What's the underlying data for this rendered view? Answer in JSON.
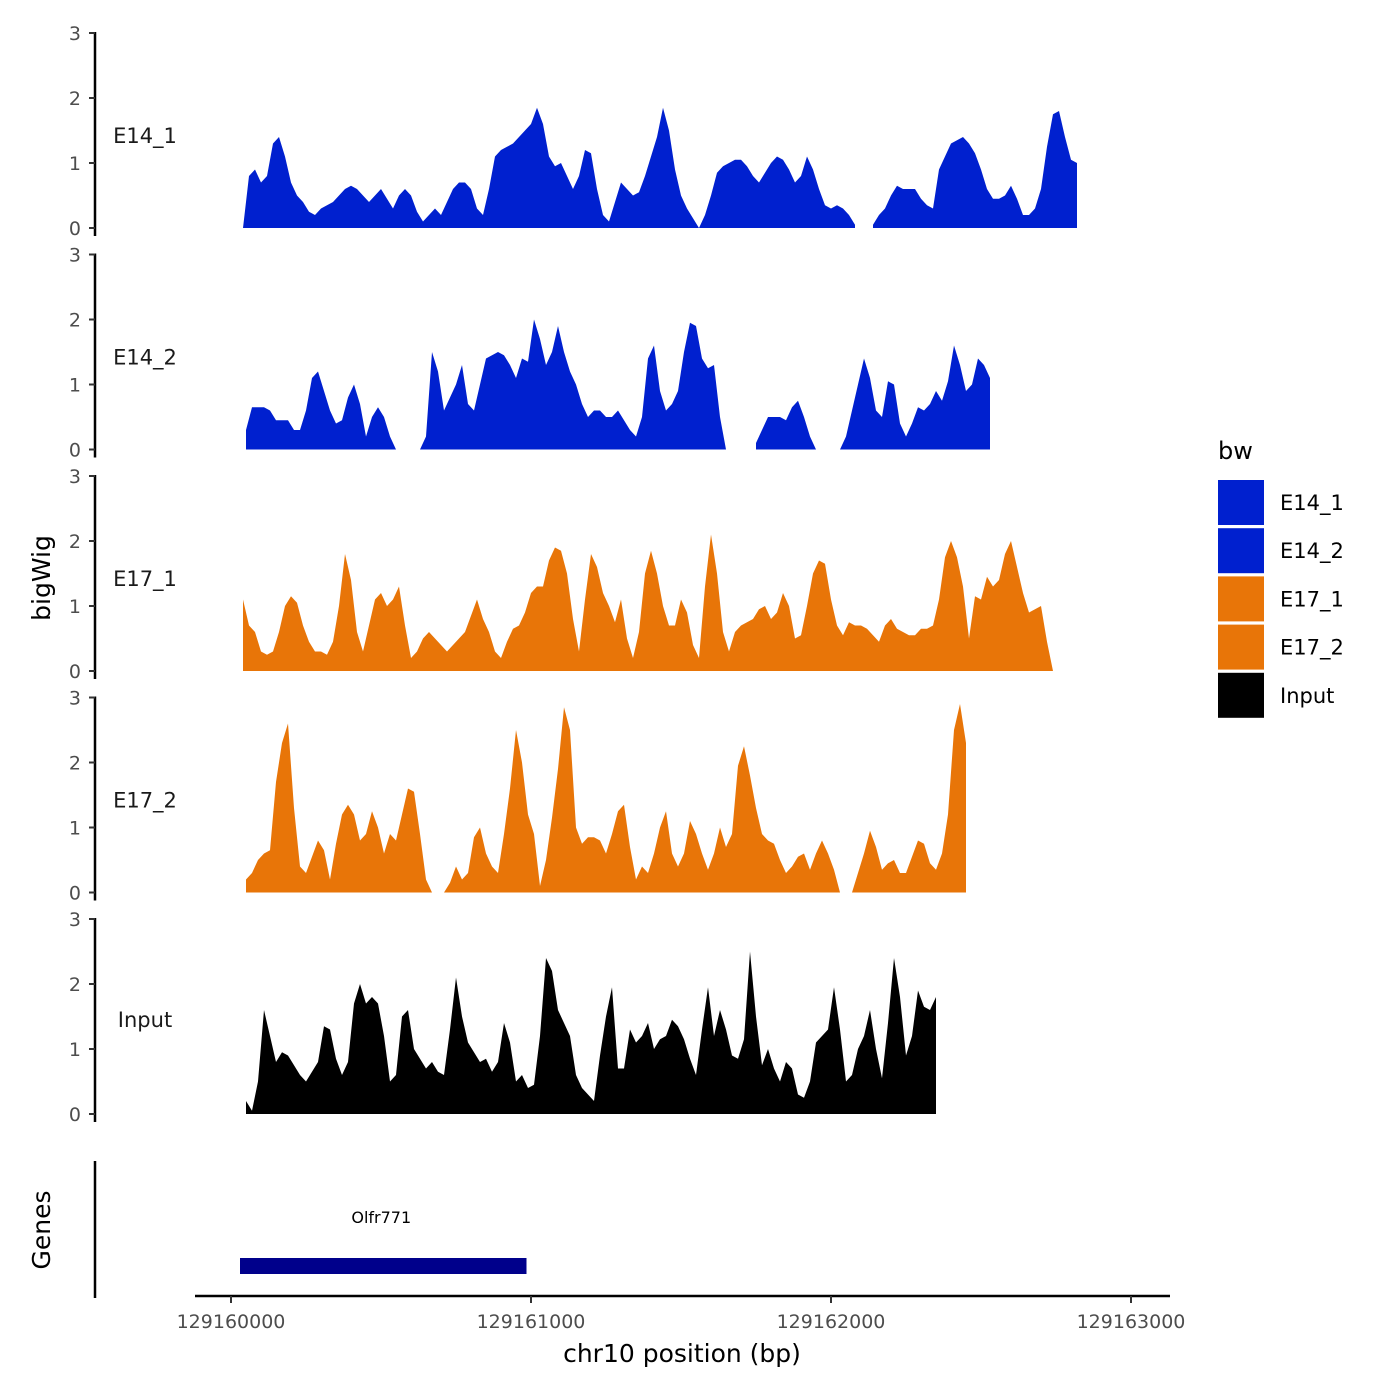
{
  "chart_data": {
    "type": "area",
    "ylabel": "bigWig",
    "genes_label": "Genes",
    "xlabel": "chr10 position (bp)",
    "x_range": [
      129159880,
      129163130
    ],
    "x_ticks": [
      129160000,
      129161000,
      129162000,
      129163000
    ],
    "x_tick_labels": [
      "129160000",
      "129161000",
      "129162000",
      "129163000"
    ],
    "ylim": [
      0,
      3
    ],
    "y_ticks": [
      0,
      1,
      2,
      3
    ],
    "y_tick_labels": [
      "0",
      "1",
      "2",
      "3"
    ],
    "legend": {
      "title": "bw",
      "entries": [
        {
          "name": "E14_1",
          "color": "#0020CF"
        },
        {
          "name": "E14_2",
          "color": "#0020CF"
        },
        {
          "name": "E17_1",
          "color": "#E87508"
        },
        {
          "name": "E17_2",
          "color": "#E87508"
        },
        {
          "name": "Input",
          "color": "#000000"
        }
      ]
    },
    "series": [
      {
        "name": "E14_1",
        "color": "#0020CF",
        "start": 129160040,
        "step": 20,
        "values": [
          0,
          0.8,
          0.9,
          0.7,
          0.8,
          1.3,
          1.4,
          1.1,
          0.7,
          0.5,
          0.4,
          0.25,
          0.2,
          0.3,
          0.35,
          0.4,
          0.5,
          0.6,
          0.65,
          0.6,
          0.5,
          0.4,
          0.5,
          0.6,
          0.45,
          0.3,
          0.5,
          0.6,
          0.5,
          0.25,
          0.1,
          0.2,
          0.3,
          0.2,
          0.4,
          0.6,
          0.7,
          0.7,
          0.6,
          0.3,
          0.2,
          0.6,
          1.1,
          1.2,
          1.25,
          1.3,
          1.4,
          1.5,
          1.6,
          1.85,
          1.6,
          1.1,
          0.95,
          1.0,
          0.8,
          0.6,
          0.8,
          1.2,
          1.15,
          0.6,
          0.2,
          0.1,
          0.4,
          0.7,
          0.6,
          0.5,
          0.55,
          0.8,
          1.1,
          1.4,
          1.85,
          1.5,
          0.9,
          0.5,
          0.3,
          0.15,
          0.0,
          0.2,
          0.5,
          0.85,
          0.95,
          1.0,
          1.05,
          1.05,
          0.95,
          0.8,
          0.7,
          0.85,
          1.0,
          1.1,
          1.05,
          0.9,
          0.7,
          0.8,
          1.1,
          0.9,
          0.6,
          0.35,
          0.3,
          0.35,
          0.3,
          0.2,
          0.05,
          null,
          null,
          0.05,
          0.2,
          0.3,
          0.5,
          0.65,
          0.6,
          0.6,
          0.6,
          0.45,
          0.35,
          0.3,
          0.9,
          1.1,
          1.3,
          1.35,
          1.4,
          1.3,
          1.15,
          0.9,
          0.6,
          0.45,
          0.45,
          0.5,
          0.65,
          0.45,
          0.2,
          0.2,
          0.3,
          0.6,
          1.25,
          1.75,
          1.8,
          1.4,
          1.05,
          1.0
        ]
      },
      {
        "name": "E14_2",
        "color": "#0020CF",
        "start": 129160050,
        "step": 20,
        "values": [
          0.3,
          0.65,
          0.65,
          0.65,
          0.6,
          0.45,
          0.45,
          0.45,
          0.3,
          0.3,
          0.6,
          1.1,
          1.2,
          0.9,
          0.6,
          0.4,
          0.45,
          0.8,
          1.0,
          0.7,
          0.2,
          0.5,
          0.65,
          0.5,
          0.2,
          0.0,
          null,
          null,
          null,
          0.0,
          0.2,
          1.5,
          1.2,
          0.6,
          0.8,
          1.0,
          1.3,
          0.7,
          0.6,
          1.0,
          1.4,
          1.45,
          1.5,
          1.45,
          1.3,
          1.1,
          1.4,
          1.35,
          2.0,
          1.7,
          1.3,
          1.5,
          1.9,
          1.5,
          1.2,
          1.0,
          0.7,
          0.5,
          0.6,
          0.6,
          0.5,
          0.5,
          0.6,
          0.45,
          0.3,
          0.2,
          0.5,
          1.4,
          1.6,
          0.9,
          0.6,
          0.7,
          0.9,
          1.5,
          1.95,
          1.9,
          1.4,
          1.25,
          1.3,
          0.5,
          0.0,
          null,
          null,
          null,
          null,
          0.1,
          0.3,
          0.5,
          0.5,
          0.5,
          0.45,
          0.65,
          0.75,
          0.5,
          0.2,
          0.0,
          null,
          null,
          null,
          0.0,
          0.2,
          0.6,
          1.0,
          1.4,
          1.1,
          0.6,
          0.5,
          1.05,
          1.0,
          0.4,
          0.2,
          0.4,
          0.65,
          0.6,
          0.7,
          0.9,
          0.75,
          1.05,
          1.6,
          1.3,
          0.9,
          1.0,
          1.4,
          1.3,
          1.1
        ]
      },
      {
        "name": "E17_1",
        "color": "#E87508",
        "start": 129160040,
        "step": 20,
        "values": [
          1.1,
          0.7,
          0.6,
          0.3,
          0.25,
          0.3,
          0.6,
          1.0,
          1.15,
          1.05,
          0.7,
          0.45,
          0.3,
          0.3,
          0.25,
          0.45,
          1.0,
          1.8,
          1.4,
          0.6,
          0.3,
          0.7,
          1.1,
          1.2,
          1.0,
          1.1,
          1.3,
          0.7,
          0.2,
          0.3,
          0.5,
          0.6,
          0.5,
          0.4,
          0.3,
          0.4,
          0.5,
          0.6,
          0.85,
          1.1,
          0.8,
          0.6,
          0.3,
          0.2,
          0.45,
          0.65,
          0.7,
          0.9,
          1.2,
          1.3,
          1.3,
          1.7,
          1.9,
          1.85,
          1.5,
          0.8,
          0.3,
          1.1,
          1.8,
          1.6,
          1.2,
          1.0,
          0.75,
          1.1,
          0.5,
          0.2,
          0.6,
          1.5,
          1.85,
          1.5,
          1.0,
          0.7,
          0.7,
          1.1,
          0.9,
          0.4,
          0.2,
          1.3,
          2.1,
          1.5,
          0.6,
          0.3,
          0.6,
          0.7,
          0.75,
          0.8,
          0.95,
          1.0,
          0.8,
          0.9,
          1.2,
          1.0,
          0.5,
          0.55,
          1.0,
          1.5,
          1.7,
          1.65,
          1.1,
          0.7,
          0.55,
          0.75,
          0.7,
          0.7,
          0.65,
          0.55,
          0.45,
          0.7,
          0.8,
          0.65,
          0.6,
          0.55,
          0.55,
          0.65,
          0.65,
          0.7,
          1.1,
          1.75,
          2.0,
          1.75,
          1.3,
          0.5,
          1.15,
          1.1,
          1.45,
          1.3,
          1.4,
          1.8,
          2.0,
          1.6,
          1.2,
          0.9,
          0.95,
          1.0,
          0.45,
          0.0
        ]
      },
      {
        "name": "E17_2",
        "color": "#E87508",
        "start": 129160050,
        "step": 20,
        "values": [
          0.2,
          0.3,
          0.5,
          0.6,
          0.65,
          1.7,
          2.3,
          2.6,
          1.3,
          0.4,
          0.3,
          0.55,
          0.8,
          0.65,
          0.2,
          0.75,
          1.2,
          1.35,
          1.2,
          0.8,
          0.9,
          1.25,
          1.0,
          0.6,
          0.9,
          0.8,
          1.2,
          1.6,
          1.55,
          0.9,
          0.2,
          0.0,
          null,
          0.0,
          0.15,
          0.4,
          0.2,
          0.3,
          0.85,
          1.0,
          0.6,
          0.4,
          0.3,
          0.9,
          1.6,
          2.5,
          2.0,
          1.2,
          0.9,
          0.1,
          0.5,
          1.15,
          1.9,
          2.85,
          2.5,
          1.0,
          0.75,
          0.85,
          0.85,
          0.8,
          0.6,
          0.9,
          1.25,
          1.35,
          0.7,
          0.2,
          0.4,
          0.3,
          0.6,
          1.0,
          1.25,
          0.6,
          0.4,
          0.6,
          1.1,
          0.9,
          0.6,
          0.35,
          0.6,
          1.0,
          0.7,
          0.9,
          1.95,
          2.25,
          1.8,
          1.3,
          0.9,
          0.8,
          0.75,
          0.5,
          0.3,
          0.4,
          0.55,
          0.6,
          0.35,
          0.6,
          0.8,
          0.6,
          0.35,
          0.0,
          null,
          0.0,
          0.3,
          0.6,
          0.95,
          0.7,
          0.35,
          0.45,
          0.5,
          0.3,
          0.3,
          0.55,
          0.8,
          0.75,
          0.45,
          0.35,
          0.6,
          1.2,
          2.5,
          2.9,
          2.3
        ]
      },
      {
        "name": "Input",
        "color": "#000000",
        "start": 129160050,
        "step": 20,
        "values": [
          0.2,
          0.05,
          0.5,
          1.6,
          1.2,
          0.8,
          0.95,
          0.9,
          0.75,
          0.6,
          0.5,
          0.65,
          0.8,
          1.35,
          1.3,
          0.85,
          0.6,
          0.8,
          1.7,
          2.0,
          1.7,
          1.8,
          1.7,
          1.2,
          0.5,
          0.6,
          1.5,
          1.6,
          1.0,
          0.85,
          0.7,
          0.8,
          0.65,
          0.6,
          1.3,
          2.1,
          1.5,
          1.1,
          0.95,
          0.8,
          0.85,
          0.65,
          0.8,
          1.4,
          1.1,
          0.5,
          0.6,
          0.4,
          0.45,
          1.2,
          2.4,
          2.2,
          1.6,
          1.4,
          1.2,
          0.6,
          0.4,
          0.3,
          0.2,
          0.9,
          1.5,
          1.95,
          0.7,
          0.7,
          1.3,
          1.1,
          1.2,
          1.4,
          1.0,
          1.15,
          1.2,
          1.45,
          1.35,
          1.15,
          0.85,
          0.6,
          1.3,
          1.95,
          1.2,
          1.6,
          1.3,
          0.9,
          0.85,
          1.15,
          2.5,
          1.5,
          0.75,
          1.0,
          0.7,
          0.5,
          0.8,
          0.7,
          0.3,
          0.25,
          0.5,
          1.1,
          1.2,
          1.3,
          1.95,
          1.3,
          0.5,
          0.6,
          1.0,
          1.2,
          1.6,
          1.0,
          0.55,
          1.4,
          2.4,
          1.8,
          0.9,
          1.2,
          1.9,
          1.65,
          1.6,
          1.8
        ]
      }
    ],
    "gene": {
      "name": "Olfr771",
      "start": 129160030,
      "end": 129160985,
      "color": "#00008B"
    }
  }
}
